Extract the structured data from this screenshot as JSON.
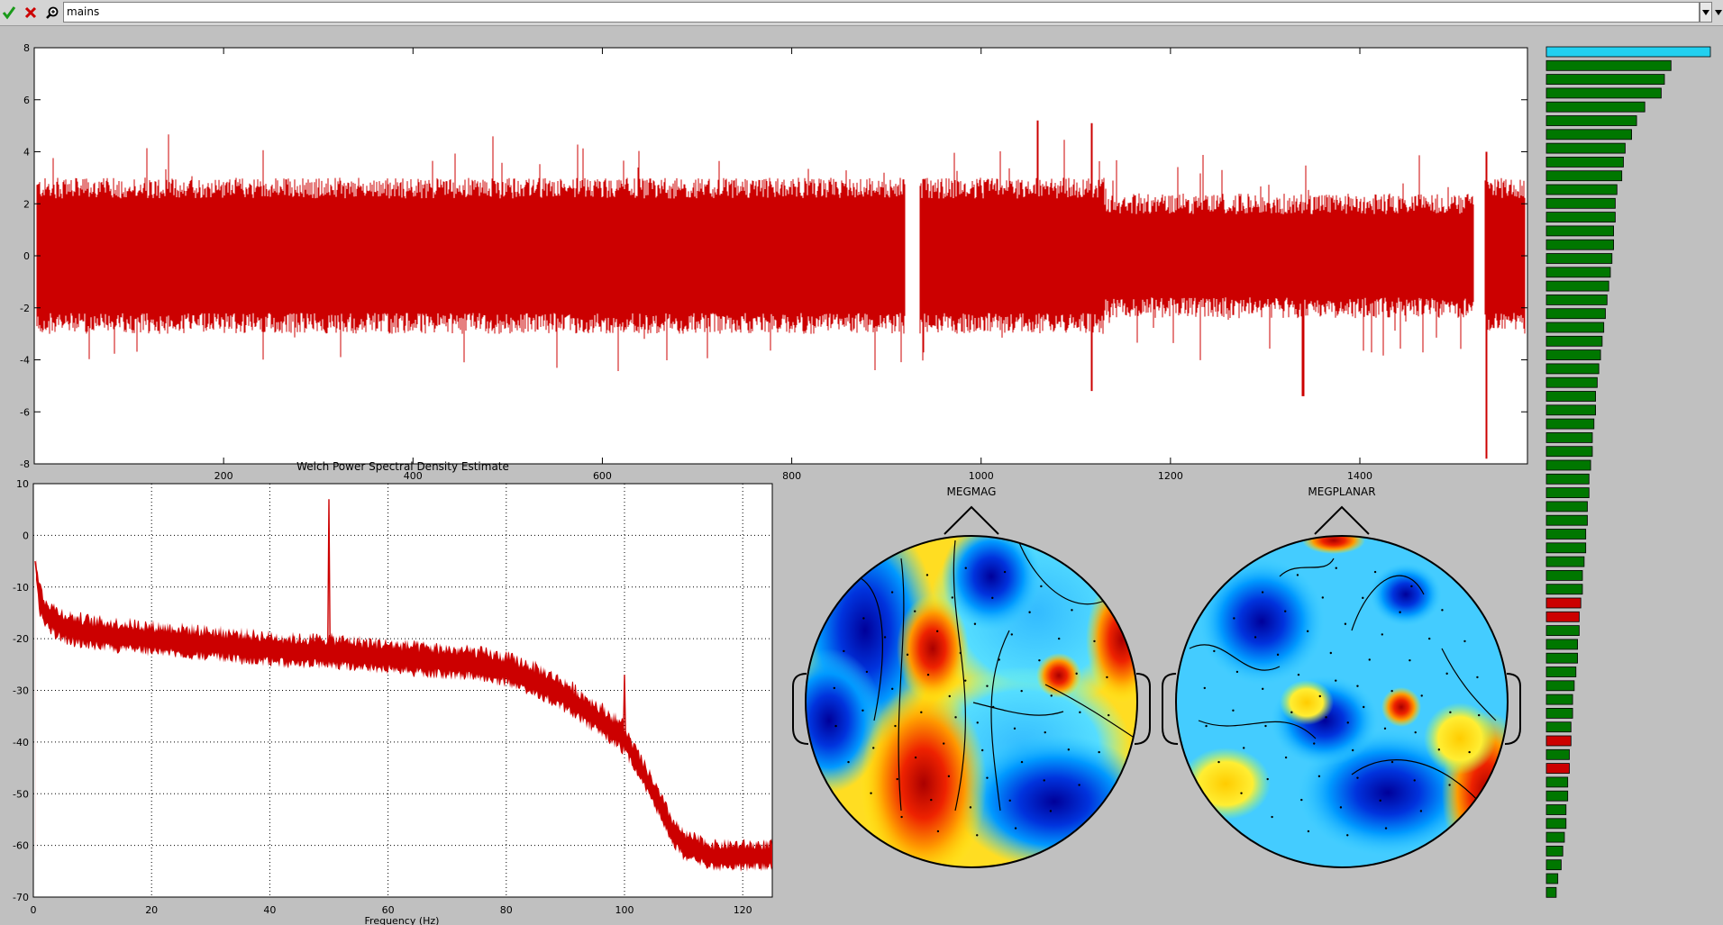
{
  "toolbar": {
    "search_value": "mains",
    "icons": {
      "ok": "check-icon",
      "cancel": "close-icon",
      "find": "zoom-icon",
      "dropdown": "chevron-down-icon"
    }
  },
  "colors": {
    "signal": "#cc0000",
    "bar_green": "#007700",
    "bar_red": "#cc0000",
    "bar_selected": "#22d0f0",
    "background": "#c0c0c0"
  },
  "timeseries": {
    "y_ticks": [
      "8",
      "6",
      "4",
      "2",
      "0",
      "-2",
      "-4",
      "-6",
      "-8"
    ],
    "x_ticks": [
      "200",
      "400",
      "600",
      "800",
      "1000",
      "1200",
      "1400"
    ]
  },
  "chart_data": {
    "type": "line",
    "title": "Welch Power Spectral Density Estimate",
    "xlabel": "Frequency (Hz)",
    "ylabel": "",
    "xlim": [
      0,
      125
    ],
    "ylim": [
      -70,
      10
    ],
    "x_ticks": [
      "0",
      "20",
      "40",
      "60",
      "80",
      "100",
      "120"
    ],
    "y_ticks": [
      "10",
      "0",
      "-10",
      "-20",
      "-30",
      "-40",
      "-50",
      "-60",
      "-70"
    ],
    "grid": true,
    "series": [
      {
        "x": [
          0.3,
          1,
          2,
          4,
          6,
          10,
          15,
          20,
          30,
          40,
          45,
          49.8,
          50,
          50.2,
          55,
          60,
          65,
          70,
          75,
          80,
          85,
          90,
          95,
          99.8,
          100,
          100.2,
          105,
          108,
          110,
          115,
          120,
          125
        ],
        "values": [
          -5,
          -12,
          -15,
          -17,
          -18,
          -19,
          -19.5,
          -20,
          -21,
          -22,
          -22.5,
          -22.5,
          7,
          -22.5,
          -23,
          -23.5,
          -24,
          -24.5,
          -25,
          -26,
          -28,
          -31,
          -35,
          -39,
          -27,
          -40,
          -50,
          -57,
          -60,
          -62,
          -62,
          -62
        ]
      }
    ]
  },
  "topomaps": [
    {
      "label": "MEGMAG"
    },
    {
      "label": "MEGPLANAR"
    }
  ],
  "components": {
    "values": [
      1.0,
      0.76,
      0.72,
      0.7,
      0.6,
      0.55,
      0.52,
      0.48,
      0.47,
      0.46,
      0.43,
      0.42,
      0.42,
      0.41,
      0.41,
      0.4,
      0.39,
      0.38,
      0.37,
      0.36,
      0.35,
      0.34,
      0.33,
      0.32,
      0.31,
      0.3,
      0.3,
      0.29,
      0.28,
      0.28,
      0.27,
      0.26,
      0.26,
      0.25,
      0.25,
      0.24,
      0.24,
      0.23,
      0.22,
      0.22,
      0.21,
      0.2,
      0.2,
      0.19,
      0.19,
      0.18,
      0.17,
      0.16,
      0.16,
      0.15,
      0.15,
      0.14,
      0.14,
      0.13,
      0.13,
      0.12,
      0.12,
      0.11,
      0.1,
      0.09,
      0.07,
      0.06
    ],
    "state": [
      "selected",
      "ok",
      "ok",
      "ok",
      "ok",
      "ok",
      "ok",
      "ok",
      "ok",
      "ok",
      "ok",
      "ok",
      "ok",
      "ok",
      "ok",
      "ok",
      "ok",
      "ok",
      "ok",
      "ok",
      "ok",
      "ok",
      "ok",
      "ok",
      "ok",
      "ok",
      "ok",
      "ok",
      "ok",
      "ok",
      "ok",
      "ok",
      "ok",
      "ok",
      "ok",
      "ok",
      "ok",
      "ok",
      "ok",
      "ok",
      "bad",
      "bad",
      "ok",
      "ok",
      "ok",
      "ok",
      "ok",
      "ok",
      "ok",
      "ok",
      "bad",
      "ok",
      "bad",
      "ok",
      "ok",
      "ok",
      "ok",
      "ok",
      "ok",
      "ok",
      "ok",
      "ok"
    ]
  }
}
